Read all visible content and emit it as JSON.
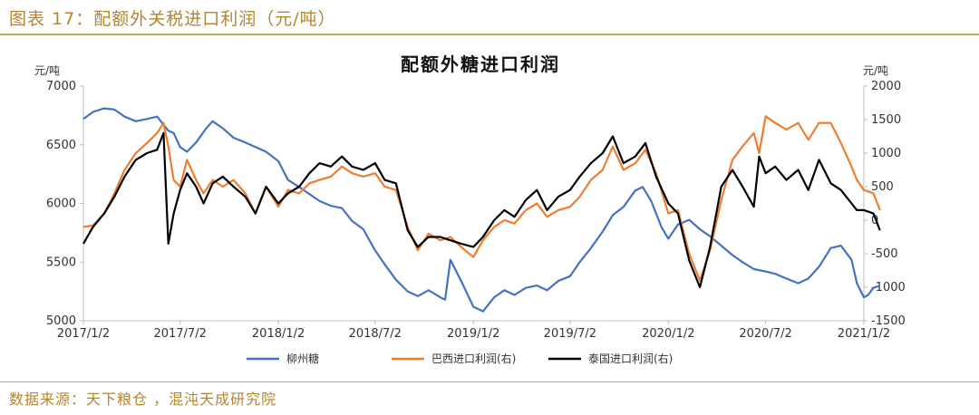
{
  "figure": {
    "caption": "图表 17：配额外关税进口利润（元/吨）",
    "source": "数据来源：天下粮仓 ，混沌天成研究院"
  },
  "chart_data": {
    "type": "line",
    "title": "配额外糖进口利润",
    "y_left": {
      "unit": "元/吨",
      "range": [
        5000,
        7000
      ],
      "ticks": [
        "5000",
        "5500",
        "6000",
        "6500",
        "7000"
      ]
    },
    "y_right": {
      "unit": "元/吨",
      "range": [
        -1500,
        2000
      ],
      "ticks": [
        "-1500",
        "-1000",
        "-500",
        "0",
        "500",
        "1000",
        "1500",
        "2000"
      ]
    },
    "x": {
      "ticks": [
        "2017/1/2",
        "2017/7/2",
        "2018/1/2",
        "2018/7/2",
        "2019/1/2",
        "2019/7/2",
        "2020/1/2",
        "2020/7/2",
        "2021/1/2"
      ]
    },
    "legend_position": "bottom",
    "series": [
      {
        "name": "柳州糖",
        "axis": "left",
        "color": "#4472c4",
        "points": [
          [
            "2017/1/2",
            6720
          ],
          [
            "2017/1/20",
            6780
          ],
          [
            "2017/2/10",
            6810
          ],
          [
            "2017/3/1",
            6800
          ],
          [
            "2017/3/20",
            6740
          ],
          [
            "2017/4/10",
            6700
          ],
          [
            "2017/5/1",
            6720
          ],
          [
            "2017/5/20",
            6740
          ],
          [
            "2017/6/10",
            6620
          ],
          [
            "2017/6/20",
            6600
          ],
          [
            "2017/7/2",
            6480
          ],
          [
            "2017/7/15",
            6440
          ],
          [
            "2017/8/1",
            6520
          ],
          [
            "2017/8/20",
            6640
          ],
          [
            "2017/9/1",
            6700
          ],
          [
            "2017/9/20",
            6640
          ],
          [
            "2017/10/10",
            6560
          ],
          [
            "2017/11/1",
            6520
          ],
          [
            "2017/11/20",
            6480
          ],
          [
            "2017/12/10",
            6440
          ],
          [
            "2018/1/2",
            6360
          ],
          [
            "2018/1/20",
            6200
          ],
          [
            "2018/2/10",
            6140
          ],
          [
            "2018/3/1",
            6080
          ],
          [
            "2018/3/20",
            6020
          ],
          [
            "2018/4/10",
            5980
          ],
          [
            "2018/5/1",
            5960
          ],
          [
            "2018/5/20",
            5850
          ],
          [
            "2018/6/10",
            5780
          ],
          [
            "2018/7/2",
            5600
          ],
          [
            "2018/7/20",
            5480
          ],
          [
            "2018/8/10",
            5350
          ],
          [
            "2018/9/1",
            5250
          ],
          [
            "2018/9/20",
            5210
          ],
          [
            "2018/10/10",
            5260
          ],
          [
            "2018/11/1",
            5200
          ],
          [
            "2018/11/10",
            5180
          ],
          [
            "2018/11/20",
            5520
          ],
          [
            "2018/12/10",
            5340
          ],
          [
            "2019/1/2",
            5120
          ],
          [
            "2019/1/20",
            5080
          ],
          [
            "2019/2/10",
            5200
          ],
          [
            "2019/3/1",
            5260
          ],
          [
            "2019/3/20",
            5220
          ],
          [
            "2019/4/10",
            5280
          ],
          [
            "2019/5/1",
            5300
          ],
          [
            "2019/5/20",
            5260
          ],
          [
            "2019/6/10",
            5340
          ],
          [
            "2019/7/2",
            5380
          ],
          [
            "2019/7/20",
            5500
          ],
          [
            "2019/8/10",
            5620
          ],
          [
            "2019/9/1",
            5760
          ],
          [
            "2019/9/20",
            5900
          ],
          [
            "2019/10/10",
            5970
          ],
          [
            "2019/11/1",
            6110
          ],
          [
            "2019/11/15",
            6140
          ],
          [
            "2019/12/1",
            6020
          ],
          [
            "2019/12/20",
            5800
          ],
          [
            "2020/1/2",
            5700
          ],
          [
            "2020/1/20",
            5820
          ],
          [
            "2020/2/10",
            5860
          ],
          [
            "2020/3/1",
            5780
          ],
          [
            "2020/3/20",
            5720
          ],
          [
            "2020/4/10",
            5640
          ],
          [
            "2020/5/1",
            5560
          ],
          [
            "2020/5/20",
            5500
          ],
          [
            "2020/6/10",
            5440
          ],
          [
            "2020/7/2",
            5420
          ],
          [
            "2020/7/20",
            5400
          ],
          [
            "2020/8/10",
            5360
          ],
          [
            "2020/9/1",
            5320
          ],
          [
            "2020/9/20",
            5360
          ],
          [
            "2020/10/10",
            5460
          ],
          [
            "2020/11/1",
            5620
          ],
          [
            "2020/11/20",
            5640
          ],
          [
            "2020/12/10",
            5520
          ],
          [
            "2020/12/20",
            5320
          ],
          [
            "2021/1/2",
            5200
          ],
          [
            "2021/1/10",
            5220
          ],
          [
            "2021/1/20",
            5280
          ],
          [
            "2021/2/1",
            5300
          ]
        ]
      },
      {
        "name": "巴西进口利润(右)",
        "axis": "right",
        "color": "#ed7d31",
        "points": [
          [
            "2017/1/2",
            -100
          ],
          [
            "2017/1/20",
            -80
          ],
          [
            "2017/2/10",
            100
          ],
          [
            "2017/3/1",
            400
          ],
          [
            "2017/3/20",
            750
          ],
          [
            "2017/4/10",
            1000
          ],
          [
            "2017/5/1",
            1150
          ],
          [
            "2017/5/20",
            1300
          ],
          [
            "2017/6/1",
            1450
          ],
          [
            "2017/6/10",
            1100
          ],
          [
            "2017/6/20",
            600
          ],
          [
            "2017/7/2",
            500
          ],
          [
            "2017/7/15",
            900
          ],
          [
            "2017/8/1",
            600
          ],
          [
            "2017/8/15",
            400
          ],
          [
            "2017/9/1",
            600
          ],
          [
            "2017/9/20",
            500
          ],
          [
            "2017/10/10",
            600
          ],
          [
            "2017/11/1",
            400
          ],
          [
            "2017/11/20",
            100
          ],
          [
            "2017/12/10",
            500
          ],
          [
            "2018/1/2",
            200
          ],
          [
            "2018/1/20",
            450
          ],
          [
            "2018/2/10",
            400
          ],
          [
            "2018/3/1",
            550
          ],
          [
            "2018/3/20",
            600
          ],
          [
            "2018/4/10",
            650
          ],
          [
            "2018/5/1",
            800
          ],
          [
            "2018/5/20",
            700
          ],
          [
            "2018/6/10",
            650
          ],
          [
            "2018/7/2",
            700
          ],
          [
            "2018/7/20",
            500
          ],
          [
            "2018/8/10",
            450
          ],
          [
            "2018/9/1",
            -100
          ],
          [
            "2018/9/20",
            -450
          ],
          [
            "2018/10/10",
            -200
          ],
          [
            "2018/11/1",
            -300
          ],
          [
            "2018/11/20",
            -250
          ],
          [
            "2018/12/10",
            -400
          ],
          [
            "2019/1/2",
            -550
          ],
          [
            "2019/1/20",
            -300
          ],
          [
            "2019/2/10",
            -100
          ],
          [
            "2019/3/1",
            0
          ],
          [
            "2019/3/20",
            -50
          ],
          [
            "2019/4/10",
            150
          ],
          [
            "2019/5/1",
            250
          ],
          [
            "2019/5/20",
            50
          ],
          [
            "2019/6/10",
            150
          ],
          [
            "2019/7/2",
            200
          ],
          [
            "2019/7/20",
            350
          ],
          [
            "2019/8/10",
            600
          ],
          [
            "2019/9/1",
            750
          ],
          [
            "2019/9/20",
            1100
          ],
          [
            "2019/10/10",
            750
          ],
          [
            "2019/11/1",
            850
          ],
          [
            "2019/11/20",
            1050
          ],
          [
            "2019/12/10",
            700
          ],
          [
            "2020/1/2",
            100
          ],
          [
            "2020/1/20",
            150
          ],
          [
            "2020/2/10",
            -500
          ],
          [
            "2020/3/1",
            -900
          ],
          [
            "2020/3/20",
            -450
          ],
          [
            "2020/4/10",
            300
          ],
          [
            "2020/5/1",
            900
          ],
          [
            "2020/5/20",
            1100
          ],
          [
            "2020/6/10",
            1300
          ],
          [
            "2020/6/20",
            1000
          ],
          [
            "2020/7/2",
            1550
          ],
          [
            "2020/7/20",
            1450
          ],
          [
            "2020/8/10",
            1350
          ],
          [
            "2020/9/1",
            1450
          ],
          [
            "2020/9/20",
            1200
          ],
          [
            "2020/10/10",
            1450
          ],
          [
            "2020/11/1",
            1450
          ],
          [
            "2020/11/20",
            1150
          ],
          [
            "2020/12/10",
            800
          ],
          [
            "2020/12/20",
            600
          ],
          [
            "2021/1/2",
            450
          ],
          [
            "2021/1/20",
            400
          ],
          [
            "2021/2/1",
            150
          ]
        ]
      },
      {
        "name": "泰国进口利润(右)",
        "axis": "right",
        "color": "#000000",
        "points": [
          [
            "2017/1/2",
            -350
          ],
          [
            "2017/1/20",
            -100
          ],
          [
            "2017/2/10",
            100
          ],
          [
            "2017/3/1",
            350
          ],
          [
            "2017/3/20",
            650
          ],
          [
            "2017/4/10",
            900
          ],
          [
            "2017/5/1",
            1000
          ],
          [
            "2017/5/20",
            1050
          ],
          [
            "2017/6/1",
            1300
          ],
          [
            "2017/6/10",
            -350
          ],
          [
            "2017/6/20",
            100
          ],
          [
            "2017/7/2",
            450
          ],
          [
            "2017/7/15",
            700
          ],
          [
            "2017/8/1",
            500
          ],
          [
            "2017/8/15",
            250
          ],
          [
            "2017/9/1",
            550
          ],
          [
            "2017/9/20",
            650
          ],
          [
            "2017/10/10",
            500
          ],
          [
            "2017/11/1",
            350
          ],
          [
            "2017/11/20",
            100
          ],
          [
            "2017/12/10",
            500
          ],
          [
            "2018/1/2",
            250
          ],
          [
            "2018/1/20",
            400
          ],
          [
            "2018/2/10",
            500
          ],
          [
            "2018/3/1",
            700
          ],
          [
            "2018/3/20",
            850
          ],
          [
            "2018/4/10",
            800
          ],
          [
            "2018/5/1",
            950
          ],
          [
            "2018/5/20",
            800
          ],
          [
            "2018/6/10",
            750
          ],
          [
            "2018/7/2",
            850
          ],
          [
            "2018/7/20",
            600
          ],
          [
            "2018/8/10",
            550
          ],
          [
            "2018/9/1",
            -150
          ],
          [
            "2018/9/20",
            -400
          ],
          [
            "2018/10/10",
            -250
          ],
          [
            "2018/11/1",
            -250
          ],
          [
            "2018/11/20",
            -300
          ],
          [
            "2018/12/10",
            -350
          ],
          [
            "2019/1/2",
            -400
          ],
          [
            "2019/1/20",
            -250
          ],
          [
            "2019/2/10",
            0
          ],
          [
            "2019/3/1",
            150
          ],
          [
            "2019/3/20",
            50
          ],
          [
            "2019/4/10",
            300
          ],
          [
            "2019/5/1",
            450
          ],
          [
            "2019/5/20",
            150
          ],
          [
            "2019/6/10",
            350
          ],
          [
            "2019/7/2",
            450
          ],
          [
            "2019/7/20",
            650
          ],
          [
            "2019/8/10",
            850
          ],
          [
            "2019/9/1",
            1000
          ],
          [
            "2019/9/20",
            1250
          ],
          [
            "2019/10/10",
            850
          ],
          [
            "2019/11/1",
            950
          ],
          [
            "2019/11/20",
            1150
          ],
          [
            "2019/12/10",
            650
          ],
          [
            "2020/1/2",
            250
          ],
          [
            "2020/1/20",
            100
          ],
          [
            "2020/2/10",
            -600
          ],
          [
            "2020/3/1",
            -1000
          ],
          [
            "2020/3/20",
            -400
          ],
          [
            "2020/4/10",
            500
          ],
          [
            "2020/5/1",
            750
          ],
          [
            "2020/5/20",
            500
          ],
          [
            "2020/6/10",
            200
          ],
          [
            "2020/6/20",
            950
          ],
          [
            "2020/7/2",
            700
          ],
          [
            "2020/7/20",
            800
          ],
          [
            "2020/8/10",
            600
          ],
          [
            "2020/9/1",
            750
          ],
          [
            "2020/9/20",
            450
          ],
          [
            "2020/10/10",
            900
          ],
          [
            "2020/11/1",
            550
          ],
          [
            "2020/11/20",
            450
          ],
          [
            "2020/12/10",
            250
          ],
          [
            "2020/12/20",
            150
          ],
          [
            "2021/1/2",
            150
          ],
          [
            "2021/1/20",
            100
          ],
          [
            "2021/2/1",
            -150
          ]
        ]
      }
    ]
  }
}
